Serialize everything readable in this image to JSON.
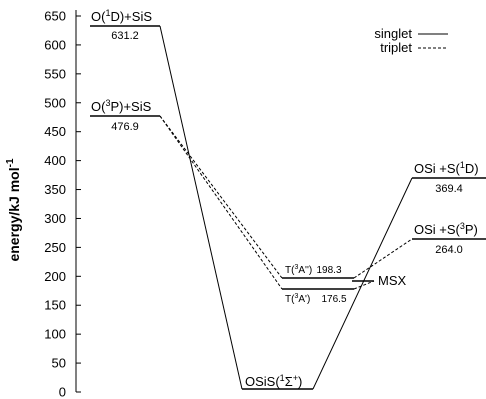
{
  "axis": {
    "label_prefix": "energy/kJ mol",
    "label_exponent": "-1",
    "ticks": [
      "0",
      "50",
      "100",
      "150",
      "200",
      "250",
      "300",
      "350",
      "400",
      "450",
      "500",
      "550",
      "600",
      "650"
    ]
  },
  "legend": {
    "singlet": "singlet",
    "triplet": "triplet"
  },
  "states": {
    "o1d_sis": {
      "pre": "O(",
      "sup": "1",
      "post": "D)+SiS",
      "energy": "631.2"
    },
    "o3p_sis": {
      "pre": "O(",
      "sup": "3",
      "post": "P)+SiS",
      "energy": "476.9"
    },
    "t3a2": {
      "pre": "T(",
      "sup": "3",
      "post": "A'')",
      "energy": "198.3"
    },
    "t3a1": {
      "pre": "T(",
      "sup": "3",
      "post": "A')",
      "energy": "176.5"
    },
    "osis": {
      "pre": "OSiS(",
      "sup": "1",
      "mid": "Σ",
      "sup2": "+",
      "post": ")"
    },
    "msx": {
      "label": "MSX"
    },
    "osi_s1d": {
      "pre": "OSi +S(",
      "sup": "1",
      "post": "D)",
      "energy": "369.4"
    },
    "osi_s3p": {
      "pre": "OSi +S(",
      "sup": "3",
      "post": "P)",
      "energy": "264.0"
    }
  },
  "chart_data": {
    "type": "energy_level_diagram",
    "ylabel": "energy/kJ mol-1",
    "ylim": [
      0,
      650
    ],
    "yticks": [
      0,
      50,
      100,
      150,
      200,
      250,
      300,
      350,
      400,
      450,
      500,
      550,
      600,
      650
    ],
    "levels": [
      {
        "label": "O(1D)+SiS",
        "energy": 631.2,
        "spin": "singlet"
      },
      {
        "label": "O(3P)+SiS",
        "energy": 476.9,
        "spin": "triplet"
      },
      {
        "label": "T(3A'')",
        "energy": 198.3,
        "spin": "triplet"
      },
      {
        "label": "T(3A')",
        "energy": 176.5,
        "spin": "triplet"
      },
      {
        "label": "OSiS(1Σ+)",
        "energy": 0,
        "spin": "singlet"
      },
      {
        "label": "MSX",
        "energy": null,
        "spin": "crossing"
      },
      {
        "label": "OSi +S(1D)",
        "energy": 369.4,
        "spin": "singlet"
      },
      {
        "label": "OSi +S(3P)",
        "energy": 264.0,
        "spin": "triplet"
      }
    ],
    "connections": [
      {
        "from": "O(1D)+SiS",
        "to": "OSiS(1Σ+)",
        "style": "singlet"
      },
      {
        "from": "OSiS(1Σ+)",
        "to": "OSi +S(1D)",
        "style": "singlet"
      },
      {
        "from": "O(3P)+SiS",
        "to": "T(3A'')",
        "style": "triplet"
      },
      {
        "from": "O(3P)+SiS",
        "to": "T(3A')",
        "style": "triplet"
      },
      {
        "from": "T(3A'')",
        "to": "OSi +S(3P)",
        "style": "triplet"
      },
      {
        "from": "T(3A')",
        "to": "MSX",
        "style": "triplet"
      }
    ]
  }
}
